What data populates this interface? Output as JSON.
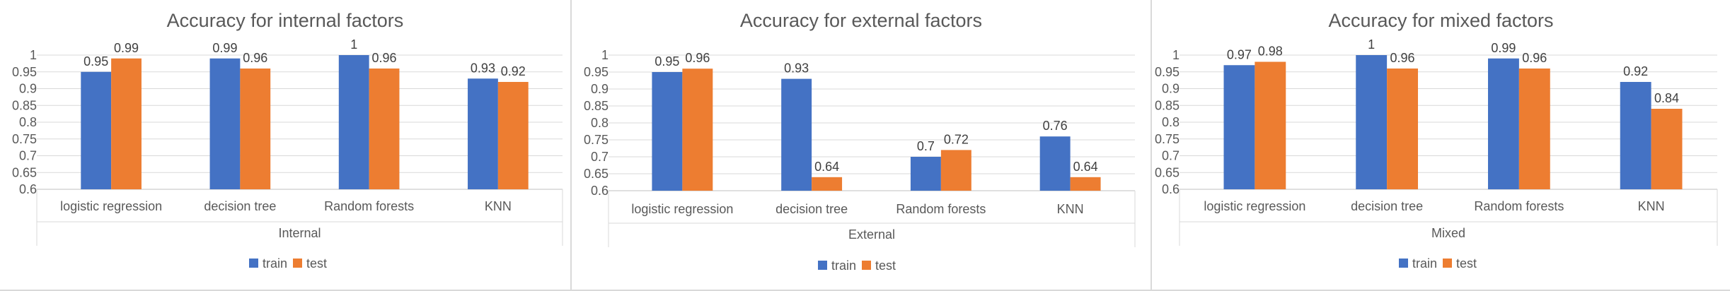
{
  "chart_data": [
    {
      "type": "bar",
      "title": "Accuracy for internal factors",
      "xlabel": "Internal",
      "ylabel": "",
      "ylim": [
        0.6,
        1
      ],
      "yticks": [
        0.6,
        0.65,
        0.7,
        0.75,
        0.8,
        0.85,
        0.9,
        0.95,
        1
      ],
      "ytick_labels": [
        "0.6",
        "0.65",
        "0.7",
        "0.75",
        "0.8",
        "0.85",
        "0.9",
        "0.95",
        "1"
      ],
      "grid": true,
      "legend_position": "bottom",
      "categories": [
        "logistic regression",
        "decision tree",
        "Random forests",
        "KNN"
      ],
      "series": [
        {
          "name": "train",
          "color": "#4472C4",
          "values": [
            0.95,
            0.99,
            1,
            0.93
          ],
          "labels": [
            "0.95",
            "0.99",
            "1",
            "0.93"
          ]
        },
        {
          "name": "test",
          "color": "#ED7D31",
          "values": [
            0.99,
            0.96,
            0.96,
            0.92
          ],
          "labels": [
            "0.99",
            "0.96",
            "0.96",
            "0.92"
          ]
        }
      ]
    },
    {
      "type": "bar",
      "title": "Accuracy for external factors",
      "xlabel": "External",
      "ylabel": "",
      "ylim": [
        0.6,
        1
      ],
      "yticks": [
        0.6,
        0.65,
        0.7,
        0.75,
        0.8,
        0.85,
        0.9,
        0.95,
        1
      ],
      "ytick_labels": [
        "0.6",
        "0.65",
        "0.7",
        "0.75",
        "0.8",
        "0.85",
        "0.9",
        "0.95",
        "1"
      ],
      "grid": true,
      "legend_position": "bottom",
      "categories": [
        "logistic regression",
        "decision tree",
        "Random forests",
        "KNN"
      ],
      "series": [
        {
          "name": "train",
          "color": "#4472C4",
          "values": [
            0.95,
            0.93,
            0.7,
            0.76
          ],
          "labels": [
            "0.95",
            "0.93",
            "0.7",
            "0.76"
          ]
        },
        {
          "name": "test",
          "color": "#ED7D31",
          "values": [
            0.96,
            0.64,
            0.72,
            0.64
          ],
          "labels": [
            "0.96",
            "0.64",
            "0.72",
            "0.64"
          ]
        }
      ]
    },
    {
      "type": "bar",
      "title": "Accuracy for mixed factors",
      "xlabel": "Mixed",
      "ylabel": "",
      "ylim": [
        0.6,
        1
      ],
      "yticks": [
        0.6,
        0.65,
        0.7,
        0.75,
        0.8,
        0.85,
        0.9,
        0.95,
        1
      ],
      "ytick_labels": [
        "0.6",
        "0.65",
        "0.7",
        "0.75",
        "0.8",
        "0.85",
        "0.9",
        "0.95",
        "1"
      ],
      "grid": true,
      "legend_position": "bottom",
      "categories": [
        "logistic regression",
        "decision tree",
        "Random forests",
        "KNN"
      ],
      "series": [
        {
          "name": "train",
          "color": "#4472C4",
          "values": [
            0.97,
            1,
            0.99,
            0.92
          ],
          "labels": [
            "0.97",
            "1",
            "0.99",
            "0.92"
          ]
        },
        {
          "name": "test",
          "color": "#ED7D31",
          "values": [
            0.98,
            0.96,
            0.96,
            0.84
          ],
          "labels": [
            "0.98",
            "0.96",
            "0.96",
            "0.84"
          ]
        }
      ]
    }
  ]
}
